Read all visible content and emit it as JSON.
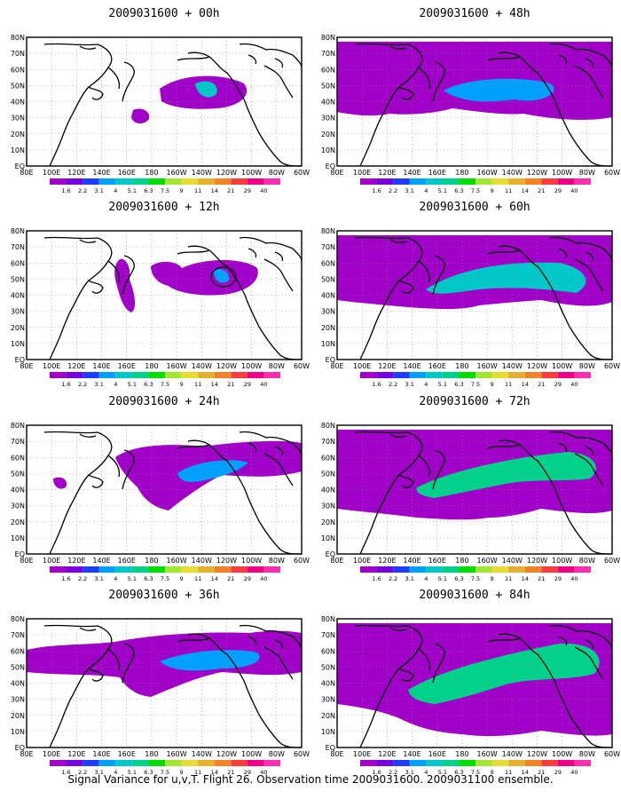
{
  "caption": "Signal Variance for u,v,T. Flight 26. Observation time 2009031600. 2009031100 ensemble.",
  "lat_labels": [
    "80N",
    "70N",
    "60N",
    "50N",
    "40N",
    "30N",
    "20N",
    "10N",
    "EQ"
  ],
  "lon_labels": [
    "80E",
    "100E",
    "120E",
    "140E",
    "160E",
    "180",
    "160W",
    "140W",
    "120W",
    "100W",
    "80W",
    "60W"
  ],
  "colorbar": {
    "levels": [
      "1.6",
      "2.2",
      "3.1",
      "4",
      "5.1",
      "6.3",
      "7.5",
      "9",
      "11",
      "14",
      "21",
      "29",
      "40"
    ],
    "colors": [
      "#a000c8",
      "#7800dc",
      "#1e3cff",
      "#00a0ff",
      "#00c8c8",
      "#00d28c",
      "#00dc00",
      "#a0e632",
      "#e6dc32",
      "#e6af2d",
      "#f08228",
      "#fa3c3c",
      "#f00082",
      "#ff2cb4"
    ]
  },
  "panels": [
    {
      "title": "2009031600 + 00h",
      "fill": "#a000c8",
      "core": "#00c8c8"
    },
    {
      "title": "2009031600 + 48h",
      "fill": "#a000c8",
      "core": "#00a0ff"
    },
    {
      "title": "2009031600 + 12h",
      "fill": "#a000c8",
      "core": "#00a0ff"
    },
    {
      "title": "2009031600 + 60h",
      "fill": "#a000c8",
      "core": "#00c8c8"
    },
    {
      "title": "2009031600 + 24h",
      "fill": "#a000c8",
      "core": "#00a0ff"
    },
    {
      "title": "2009031600 + 72h",
      "fill": "#a000c8",
      "core": "#00d28c"
    },
    {
      "title": "2009031600 + 36h",
      "fill": "#a000c8",
      "core": "#00a0ff"
    },
    {
      "title": "2009031600 + 84h",
      "fill": "#a000c8",
      "core": "#00d28c"
    }
  ]
}
